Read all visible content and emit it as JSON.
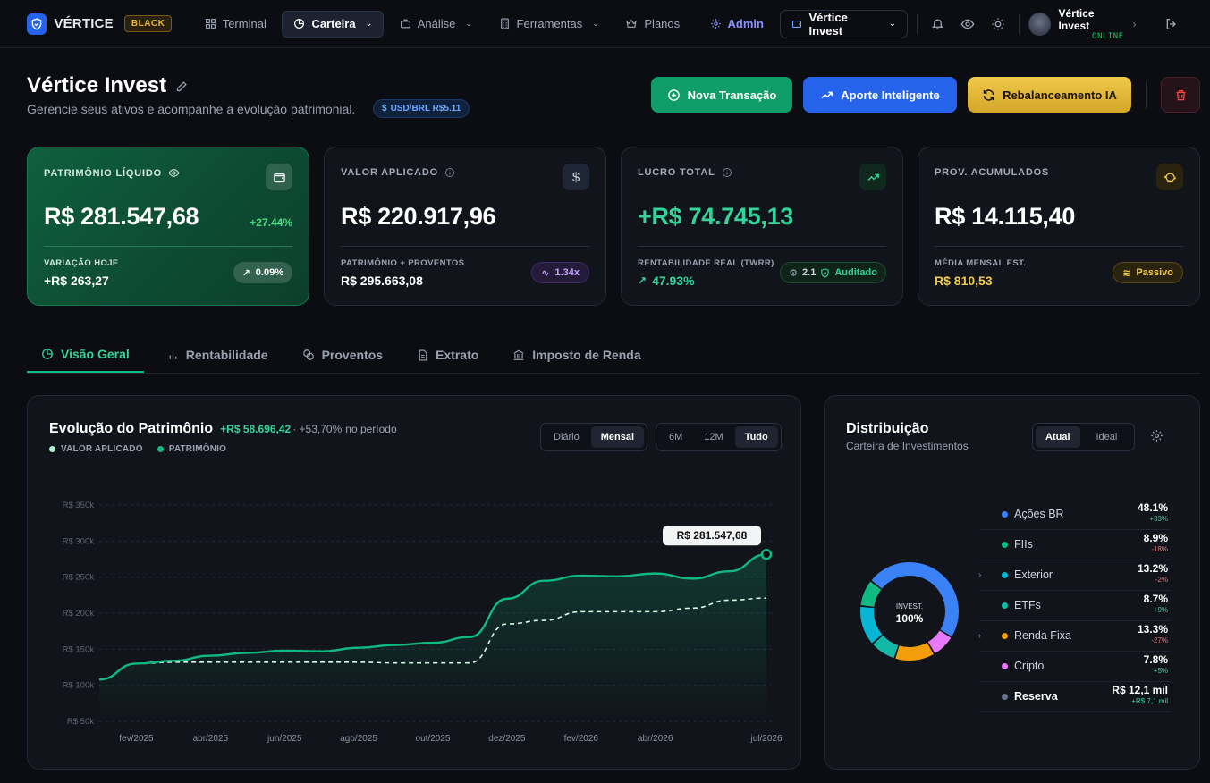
{
  "nav": {
    "brand": "VÉRTICE",
    "tier": "BLACK",
    "items": [
      {
        "label": "Terminal",
        "icon": "grid-icon"
      },
      {
        "label": "Carteira",
        "icon": "pie-chart-icon"
      },
      {
        "label": "Análise",
        "icon": "briefcase-icon"
      },
      {
        "label": "Ferramentas",
        "icon": "calculator-icon"
      },
      {
        "label": "Planos",
        "icon": "crown-icon"
      },
      {
        "label": "Admin",
        "icon": "gear-icon"
      }
    ],
    "portfolio_select": "Vértice Invest",
    "user": {
      "name": "Vértice Invest",
      "status": "ONLINE"
    }
  },
  "header": {
    "title": "Vértice Invest",
    "subtitle": "Gerencie seus ativos e acompanhe a evolução patrimonial.",
    "fx_badge": "USD/BRL R$5.11",
    "actions": {
      "new_tx": "Nova Transação",
      "smart": "Aporte Inteligente",
      "rebalance": "Rebalanceamento IA"
    }
  },
  "cards": {
    "net_worth": {
      "label": "PATRIMÔNIO LÍQUIDO",
      "value": "R$ 281.547,68",
      "change": "+27.44%",
      "sub_label": "VARIAÇÃO HOJE",
      "sub_value": "+R$ 263,27",
      "pill": "0.09%"
    },
    "invested": {
      "label": "VALOR APLICADO",
      "value": "R$ 220.917,96",
      "sub_label": "PATRIMÔNIO + PROVENTOS",
      "sub_value": "R$ 295.663,08",
      "pill": "1.34x"
    },
    "profit": {
      "label": "LUCRO TOTAL",
      "value": "+R$ 74.745,13",
      "sub_label": "RENTABILIDADE REAL (TWRR)",
      "sub_value": "47.93%",
      "pill_a": "2.1",
      "pill_b": "Auditado"
    },
    "dividends": {
      "label": "PROV. ACUMULADOS",
      "value": "R$ 14.115,40",
      "sub_label": "MÉDIA MENSAL EST.",
      "sub_value": "R$ 810,53",
      "pill": "Passivo"
    }
  },
  "tabs": [
    "Visão Geral",
    "Rentabilidade",
    "Proventos",
    "Extrato",
    "Imposto de Renda"
  ],
  "evolution": {
    "title": "Evolução do Patrimônio",
    "gain": "+R$ 58.696,42",
    "gain_pct": "· +53,70%",
    "period_text": "no período",
    "legend": [
      "VALOR APLICADO",
      "PATRIMÔNIO"
    ],
    "granularity": [
      "Diário",
      "Mensal"
    ],
    "range": [
      "6M",
      "12M",
      "Tudo"
    ],
    "tooltip": "R$ 281.547,68"
  },
  "chart_data": {
    "type": "line",
    "x": [
      "jan/2025",
      "fev/2025",
      "mar/2025",
      "abr/2025",
      "mai/2025",
      "jun/2025",
      "jul/2025",
      "ago/2025",
      "set/2025",
      "out/2025",
      "nov/2025",
      "dez/2025",
      "jan/2026",
      "fev/2026",
      "mar/2026",
      "abr/2026",
      "mai/2026",
      "jun/2026",
      "jul/2026"
    ],
    "x_tick_labels": [
      "fev/2025",
      "abr/2025",
      "jun/2025",
      "ago/2025",
      "out/2025",
      "dez/2025",
      "fev/2026",
      "abr/2026",
      "jul/2026"
    ],
    "series": [
      {
        "name": "PATRIMÔNIO",
        "color": "#10b981",
        "values": [
          108000,
          130000,
          134000,
          141000,
          145000,
          148000,
          147000,
          152000,
          156000,
          159000,
          167000,
          220000,
          245000,
          252000,
          251000,
          255000,
          248000,
          258000,
          281548
        ]
      },
      {
        "name": "VALOR APLICADO",
        "color": "#d1fae5",
        "values": [
          108000,
          130000,
          132000,
          132000,
          132000,
          132000,
          132000,
          132000,
          131000,
          131000,
          131000,
          185000,
          190000,
          202000,
          202000,
          202000,
          207000,
          218000,
          220918
        ]
      }
    ],
    "y_ticks": [
      "R$ 350k",
      "R$ 300k",
      "R$ 250k",
      "R$ 200k",
      "R$ 150k",
      "R$ 100k",
      "R$ 50k"
    ],
    "ylim": [
      50000,
      350000
    ],
    "grid": true
  },
  "distribution": {
    "title": "Distribuição",
    "subtitle": "Carteira de Investimentos",
    "toggle": [
      "Atual",
      "Ideal"
    ],
    "center_label": "INVEST.",
    "center_value": "100%",
    "items": [
      {
        "name": "Ações BR",
        "pct": "48.1%",
        "chg": "+33%",
        "color": "#3b82f6",
        "chg_color": "#34d399",
        "expand": false
      },
      {
        "name": "FIIs",
        "pct": "8.9%",
        "chg": "-18%",
        "color": "#10b981",
        "chg_color": "#f87171",
        "expand": false
      },
      {
        "name": "Exterior",
        "pct": "13.2%",
        "chg": "-2%",
        "color": "#06b6d4",
        "chg_color": "#f87171",
        "expand": true
      },
      {
        "name": "ETFs",
        "pct": "8.7%",
        "chg": "+9%",
        "color": "#14b8a6",
        "chg_color": "#34d399",
        "expand": false
      },
      {
        "name": "Renda Fixa",
        "pct": "13.3%",
        "chg": "-27%",
        "color": "#f59e0b",
        "chg_color": "#f87171",
        "expand": true
      },
      {
        "name": "Cripto",
        "pct": "7.8%",
        "chg": "+5%",
        "color": "#e879f9",
        "chg_color": "#34d399",
        "expand": false
      },
      {
        "name": "Reserva",
        "pct": "R$ 12,1 mil",
        "chg": "+R$ 7,1 mil",
        "color": "#64748b",
        "chg_color": "#34d399",
        "expand": false
      }
    ],
    "donut": [
      {
        "name": "Ações BR",
        "value": 48.1,
        "color": "#3b82f6"
      },
      {
        "name": "Cripto",
        "value": 7.8,
        "color": "#e879f9"
      },
      {
        "name": "Renda Fixa",
        "value": 13.3,
        "color": "#f59e0b"
      },
      {
        "name": "ETFs",
        "value": 8.7,
        "color": "#14b8a6"
      },
      {
        "name": "Exterior",
        "value": 13.2,
        "color": "#06b6d4"
      },
      {
        "name": "FIIs",
        "value": 8.9,
        "color": "#10b981"
      }
    ]
  }
}
